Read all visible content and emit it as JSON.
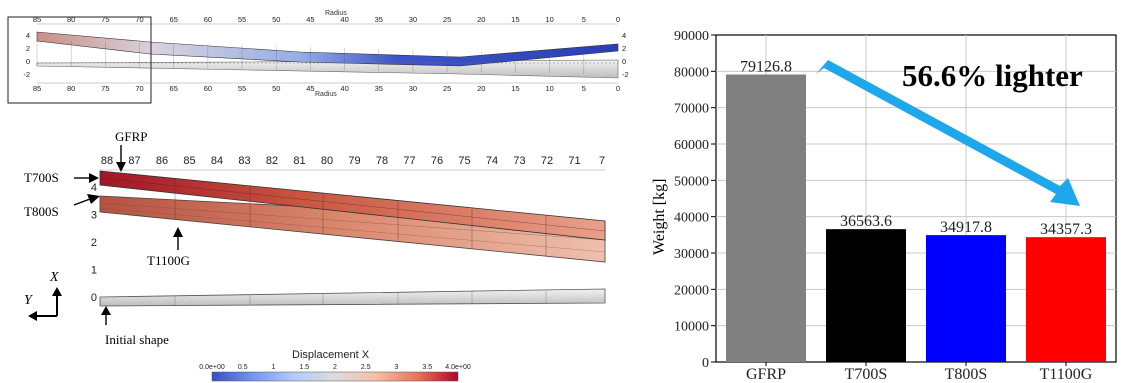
{
  "top_panel": {
    "radius_label_top": "Radius",
    "radius_label_bottom": "Radius",
    "radius_ticks_top": [
      "85",
      "80",
      "75",
      "70",
      "65",
      "60",
      "55",
      "50",
      "45",
      "40",
      "35",
      "30",
      "25",
      "20",
      "15",
      "10",
      "5",
      "0"
    ],
    "radius_ticks_bottom": [
      "85",
      "80",
      "75",
      "70",
      "65",
      "60",
      "55",
      "50",
      "45",
      "40",
      "35",
      "30",
      "25",
      "20",
      "15",
      "10",
      "5",
      "0"
    ],
    "left_ticks": [
      "4",
      "2",
      "0",
      "-2"
    ],
    "right_ticks": [
      "4",
      "2",
      "0",
      "-2"
    ]
  },
  "zoom_panel": {
    "top_ticks": [
      "88",
      "87",
      "86",
      "85",
      "84",
      "83",
      "82",
      "81",
      "80",
      "79",
      "78",
      "77",
      "76",
      "75",
      "74",
      "73",
      "72",
      "71",
      "7"
    ],
    "left_ticks": [
      "4",
      "3",
      "2",
      "1",
      "0"
    ],
    "labels": {
      "gfrp": "GFRP",
      "t700s": "T700S",
      "t800s": "T800S",
      "t1100g": "T1100G",
      "initial": "Initial shape",
      "axis_x": "X",
      "axis_y": "Y"
    }
  },
  "colorbar": {
    "title": "Displacement X",
    "ticks": [
      "0.0e+00",
      "0.5",
      "1",
      "1.5",
      "2",
      "2.5",
      "3",
      "3.5",
      "4.0e+00"
    ],
    "colors": [
      "#3b4cc0",
      "#7396f5",
      "#b0cbfc",
      "#dddcdc",
      "#f6bfa6",
      "#e7755b",
      "#b40426"
    ]
  },
  "chart_data": {
    "type": "bar",
    "categories": [
      "GFRP",
      "T700S",
      "T800S",
      "T1100G"
    ],
    "values": [
      79126.8,
      36563.6,
      34917.8,
      34357.3
    ],
    "value_labels": [
      "79126.8",
      "36563.6",
      "34917.8",
      "34357.3"
    ],
    "colors": [
      "#808080",
      "#000000",
      "#0000ff",
      "#ff0000"
    ],
    "ylabel": "Weight [kg]",
    "ylim": [
      0,
      90000
    ],
    "yticks": [
      "0",
      "10000",
      "20000",
      "30000",
      "40000",
      "50000",
      "60000",
      "70000",
      "80000",
      "90000"
    ],
    "grid": true,
    "annotation": "56.6% lighter",
    "arrow_color": "#1ea7ea"
  }
}
